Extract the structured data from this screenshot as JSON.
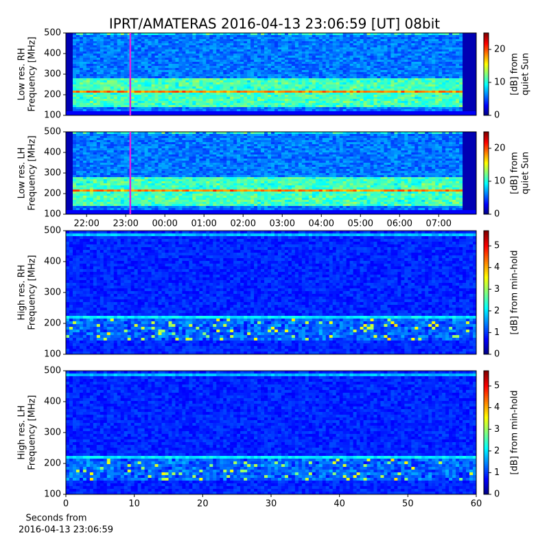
{
  "title": "IPRT/AMATERAS 2016-04-13 23:06:59 [UT]   08bit",
  "chart_data": [
    {
      "type": "heatmap",
      "ylabel": [
        "Low res. RH",
        "Frequency [MHz]"
      ],
      "xlim": [
        21.47,
        31.96
      ],
      "ylim": [
        100,
        500
      ],
      "yticks": [
        100,
        200,
        300,
        400,
        500
      ],
      "clim": [
        0,
        25
      ],
      "cticks": [
        0,
        10,
        20
      ],
      "colorbar_label": [
        "[dB] from",
        "quiet Sun"
      ],
      "marker_x": 23.116,
      "marker_color": "#e020e0"
    },
    {
      "type": "heatmap",
      "ylabel": [
        "Low res. LH",
        "Frequency [MHz]"
      ],
      "xlim": [
        21.47,
        31.96
      ],
      "ylim": [
        100,
        500
      ],
      "yticks": [
        100,
        200,
        300,
        400,
        500
      ],
      "xticks": [
        {
          "value": 22,
          "label": "22:00"
        },
        {
          "value": 23,
          "label": "23:00"
        },
        {
          "value": 24,
          "label": "00:00"
        },
        {
          "value": 25,
          "label": "01:00"
        },
        {
          "value": 26,
          "label": "02:00"
        },
        {
          "value": 27,
          "label": "03:00"
        },
        {
          "value": 28,
          "label": "04:00"
        },
        {
          "value": 29,
          "label": "05:00"
        },
        {
          "value": 30,
          "label": "06:00"
        },
        {
          "value": 31,
          "label": "07:00"
        }
      ],
      "clim": [
        0,
        25
      ],
      "cticks": [
        0,
        10,
        20
      ],
      "colorbar_label": [
        "[dB] from",
        "quiet Sun"
      ],
      "marker_x": 23.116,
      "marker_color": "#e020e0"
    },
    {
      "type": "heatmap",
      "ylabel": [
        "High res. RH",
        "Frequency [MHz]"
      ],
      "xlim": [
        0,
        60
      ],
      "ylim": [
        100,
        500
      ],
      "yticks": [
        100,
        200,
        300,
        400,
        500
      ],
      "clim": [
        0,
        5.7
      ],
      "cticks": [
        0,
        1,
        2,
        3,
        4,
        5
      ],
      "colorbar_label": [
        "[dB] from min-hold"
      ]
    },
    {
      "type": "heatmap",
      "ylabel": [
        "High res. LH",
        "Frequency [MHz]"
      ],
      "xlim": [
        0,
        60
      ],
      "ylim": [
        100,
        500
      ],
      "yticks": [
        100,
        200,
        300,
        400,
        500
      ],
      "xticks": [
        0,
        10,
        20,
        30,
        40,
        50,
        60
      ],
      "xlabel": [
        "Seconds from",
        "2016-04-13 23:06:59"
      ],
      "clim": [
        0,
        5.7
      ],
      "cticks": [
        0,
        1,
        2,
        3,
        4,
        5
      ],
      "colorbar_label": [
        "[dB] from min-hold"
      ]
    }
  ]
}
